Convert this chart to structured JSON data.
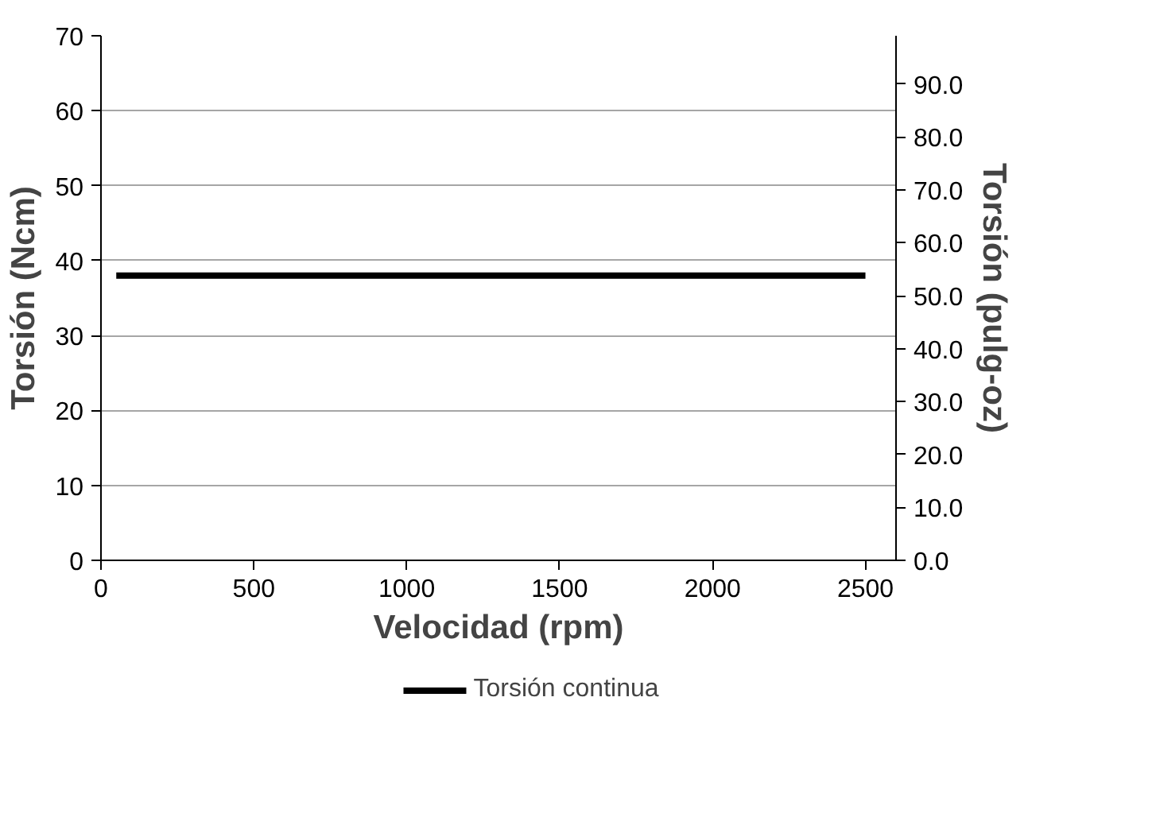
{
  "chart_data": {
    "type": "line",
    "xlabel": "Velocidad (rpm)",
    "ylabel": "Torsión (Ncm)",
    "y2label": "Torsión (pulg-oz)",
    "x": [
      50,
      2500
    ],
    "series": [
      {
        "name": "Torsión continua",
        "color": "#000000",
        "values": [
          38,
          38
        ]
      }
    ],
    "xlim": [
      0,
      2600
    ],
    "xticks": [
      0,
      500,
      1000,
      1500,
      2000,
      2500
    ],
    "ylim": [
      0,
      70
    ],
    "yticks": [
      0,
      10,
      20,
      30,
      40,
      50,
      60,
      70
    ],
    "y2lim": [
      0,
      99.1
    ],
    "y2ticks": [
      {
        "value": 0,
        "label": "0.0"
      },
      {
        "value": 10,
        "label": "10.0"
      },
      {
        "value": 20,
        "label": "20.0"
      },
      {
        "value": 30,
        "label": "30.0"
      },
      {
        "value": 40,
        "label": "40.0"
      },
      {
        "value": 50,
        "label": "50.0"
      },
      {
        "value": 60,
        "label": "60.0"
      },
      {
        "value": 70,
        "label": "70.0"
      },
      {
        "value": 80,
        "label": "80.0"
      },
      {
        "value": 90,
        "label": "90.0"
      }
    ],
    "grid": "y",
    "legend": "bottom",
    "marker": "none",
    "line_style": "solid"
  }
}
